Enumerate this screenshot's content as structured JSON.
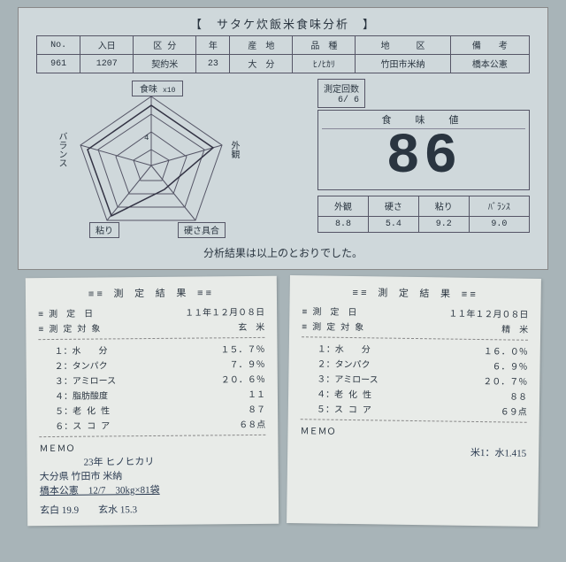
{
  "sheet": {
    "title": "【　サタケ炊飯米食味分析　】",
    "header_row": [
      "No.",
      "入日",
      "区 分",
      "年",
      "産　地",
      "品　種",
      "地　　　区",
      "備　　考"
    ],
    "data_row": [
      "961",
      "1207",
      "契約米",
      "23",
      "大　分",
      "ﾋﾉﾋｶﾘ",
      "竹田市米納",
      "橋本公憲"
    ],
    "radar": {
      "top": "食味",
      "top_sub": "x10",
      "right": "外観",
      "bottom_right": "硬さ具合",
      "bottom_left": "粘り",
      "left": "バランス",
      "center_val": "4"
    },
    "count_label": "測定回数",
    "count_val": "6/ 6",
    "score_label": "食　味　値",
    "score": "86",
    "sub_labels": [
      "外観",
      "硬さ",
      "粘り",
      "ﾊﾞﾗﾝｽ"
    ],
    "sub_vals": [
      "8.8",
      "5.4",
      "9.2",
      "9.0"
    ],
    "footer": "分析結果は以上のとおりでした。"
  },
  "receipt1": {
    "title": "≡≡ 測 定 結 果 ≡≡",
    "date_l": "≡ 測　定　日",
    "date_v": "１１年１２月０８日",
    "obj_l": "≡ 測 定 対 象",
    "obj_v": "玄　米",
    "items": [
      {
        "l": "１：水　　分",
        "v": "１５．７％"
      },
      {
        "l": "２：タンパク",
        "v": "７．９％"
      },
      {
        "l": "３：アミロース",
        "v": "２０．６％"
      },
      {
        "l": "４：脂肪酸度",
        "v": "１１"
      },
      {
        "l": "５：老 化 性",
        "v": "８７"
      },
      {
        "l": "６：ス コ ア",
        "v": "６８点"
      }
    ],
    "memo": "ＭＥＭＯ",
    "hand1": "23年 ヒノヒカリ",
    "hand2": "大分県 竹田市 米納",
    "hand3": "橋本公憲　12/7　30kg×81袋",
    "hand4": "玄白 19.9　　玄水 15.3"
  },
  "receipt2": {
    "title": "≡≡ 測 定 結 果 ≡≡",
    "date_l": "≡ 測　定　日",
    "date_v": "１１年１２月０８日",
    "obj_l": "≡ 測 定 対 象",
    "obj_v": "精　米",
    "items": [
      {
        "l": "１：水　　分",
        "v": "１６．０％"
      },
      {
        "l": "２：タンパク",
        "v": "６．９％"
      },
      {
        "l": "３：アミロース",
        "v": "２０．７％"
      },
      {
        "l": "４：老 化 性",
        "v": "８８"
      },
      {
        "l": "５：ス コ ア",
        "v": "６９点"
      }
    ],
    "memo": "ＭＥＭＯ",
    "hand1": "米1：水1.415"
  }
}
